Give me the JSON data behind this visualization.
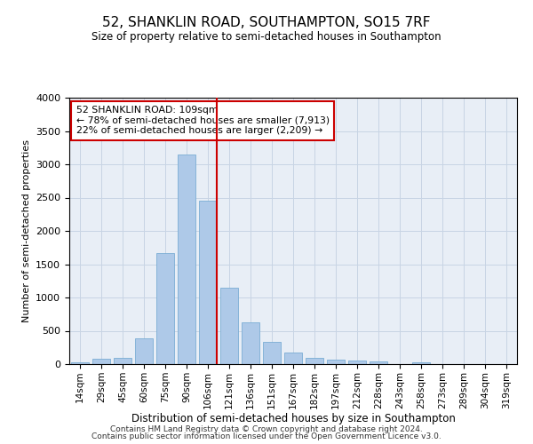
{
  "title": "52, SHANKLIN ROAD, SOUTHAMPTON, SO15 7RF",
  "subtitle": "Size of property relative to semi-detached houses in Southampton",
  "xlabel": "Distribution of semi-detached houses by size in Southampton",
  "ylabel": "Number of semi-detached properties",
  "categories": [
    "14sqm",
    "29sqm",
    "45sqm",
    "60sqm",
    "75sqm",
    "90sqm",
    "106sqm",
    "121sqm",
    "136sqm",
    "151sqm",
    "167sqm",
    "182sqm",
    "197sqm",
    "212sqm",
    "228sqm",
    "243sqm",
    "258sqm",
    "273sqm",
    "289sqm",
    "304sqm",
    "319sqm"
  ],
  "bar_heights": [
    25,
    75,
    100,
    385,
    1670,
    3150,
    2450,
    1150,
    630,
    340,
    170,
    100,
    65,
    50,
    35,
    0,
    30,
    0,
    0,
    0,
    0
  ],
  "bar_color": "#aec9e8",
  "bar_edge_color": "#7aadd4",
  "grid_color": "#c8d4e4",
  "background_color": "#e8eef6",
  "vline_x_index": 6,
  "vline_color": "#cc0000",
  "annotation_text": "52 SHANKLIN ROAD: 109sqm\n← 78% of semi-detached houses are smaller (7,913)\n22% of semi-detached houses are larger (2,209) →",
  "annotation_box_color": "#ffffff",
  "annotation_box_edge": "#cc0000",
  "ylim": [
    0,
    4000
  ],
  "yticks": [
    0,
    500,
    1000,
    1500,
    2000,
    2500,
    3000,
    3500,
    4000
  ],
  "footer1": "Contains HM Land Registry data © Crown copyright and database right 2024.",
  "footer2": "Contains public sector information licensed under the Open Government Licence v3.0."
}
